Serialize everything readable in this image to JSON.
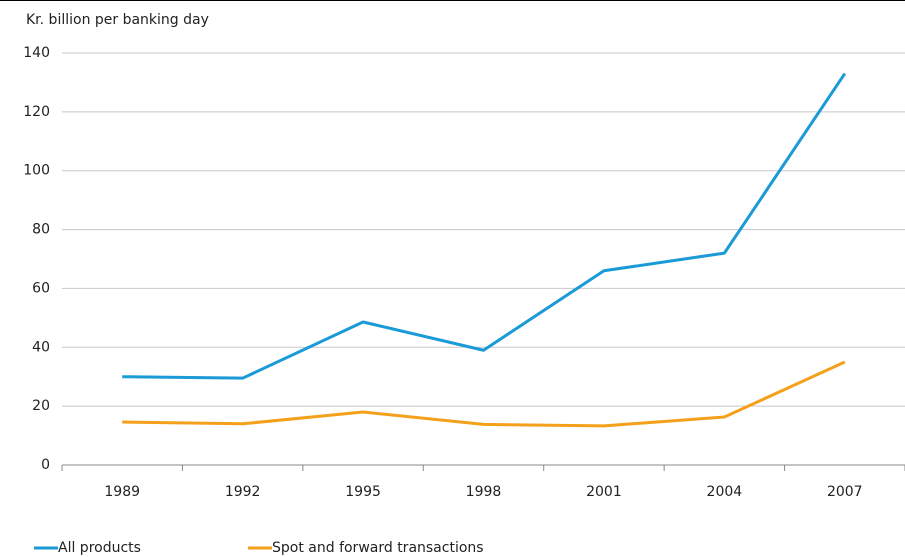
{
  "chart_data": {
    "type": "line",
    "y_axis_label": "Kr. billion per banking day",
    "categories": [
      "1989",
      "1992",
      "1995",
      "1998",
      "2001",
      "2004",
      "2007"
    ],
    "series": [
      {
        "name": "All products",
        "color": "#1a9ad6",
        "values": [
          30,
          29.5,
          48.6,
          39,
          66,
          72,
          133
        ]
      },
      {
        "name": "Spot and forward transactions",
        "color": "#f5a01a",
        "values": [
          14.6,
          14,
          18,
          13.8,
          13.3,
          16.3,
          35
        ]
      }
    ],
    "ylim": [
      0,
      140
    ],
    "yticks": [
      0,
      20,
      40,
      60,
      80,
      100,
      120,
      140
    ],
    "grid": true,
    "legend": "bottom-left"
  }
}
